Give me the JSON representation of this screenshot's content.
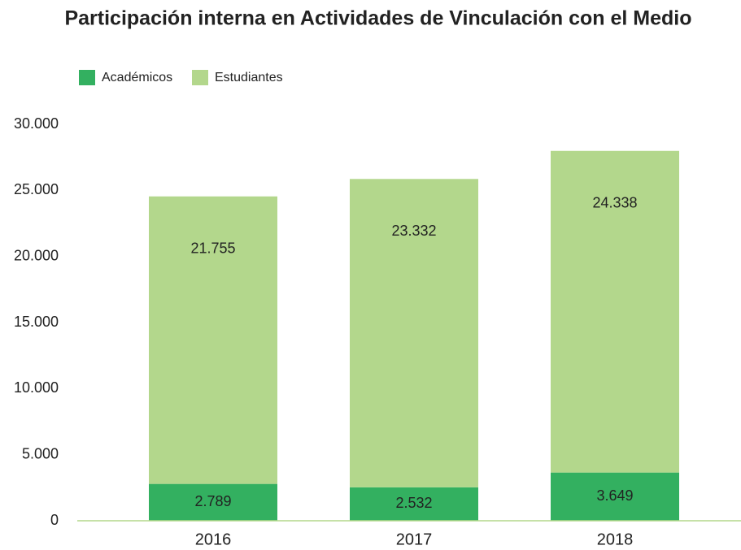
{
  "chart_data": {
    "type": "stacked_bar",
    "title": "Participación interna en Actividades de Vinculación con el Medio",
    "categories": [
      "2016",
      "2017",
      "2018"
    ],
    "series": [
      {
        "name": "Académicos",
        "color": "#33b060",
        "values": [
          2789,
          2532,
          3649
        ],
        "value_labels": [
          "2.789",
          "2.532",
          "3.649"
        ]
      },
      {
        "name": "Estudiantes",
        "color": "#b3d78c",
        "values": [
          21755,
          23332,
          24338
        ],
        "value_labels": [
          "21.755",
          "23.332",
          "24.338"
        ]
      }
    ],
    "ylim": [
      0,
      30000
    ],
    "yticks": [
      0,
      {
        "value": 5000,
        "label": "5.000"
      },
      {
        "value": 10000,
        "label": "10.000"
      },
      {
        "value": 15000,
        "label": "15.000"
      },
      {
        "value": 20000,
        "label": "20.000"
      },
      {
        "value": 25000,
        "label": "25.000"
      },
      {
        "value": 30000,
        "label": "30.000"
      }
    ],
    "grid": false,
    "legend": "top-left"
  }
}
